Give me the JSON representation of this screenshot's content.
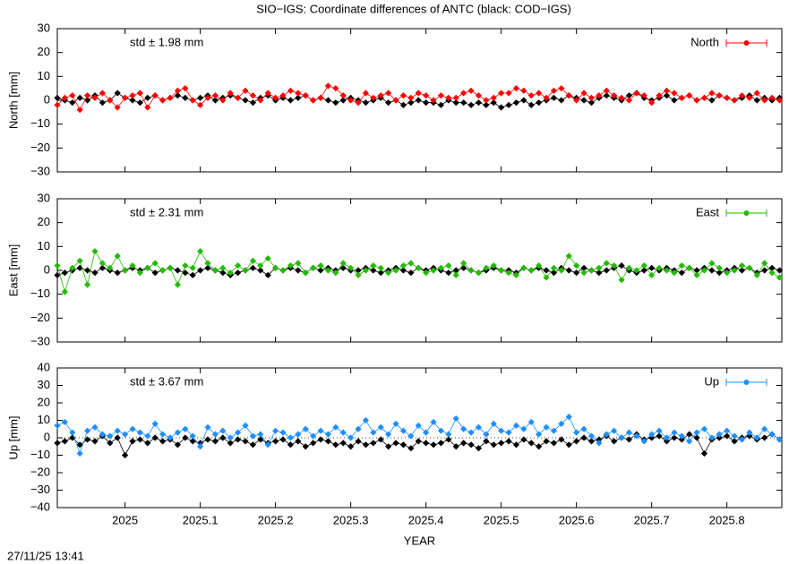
{
  "title": "SIO−IGS: Coordinate differences of ANTC (black: COD−IGS)",
  "footer": "27/11/25 13:41",
  "chart_data": [
    {
      "type": "line",
      "ylabel": "North [mm]",
      "annotation": "std ± 1.98 mm",
      "legend": "top-right",
      "zeroline": false,
      "xlim": [
        2024.91,
        2025.873
      ],
      "xticks": [
        2025,
        2025.1,
        2025.2,
        2025.3,
        2025.4,
        2025.5,
        2025.6,
        2025.7,
        2025.8
      ],
      "ylim": [
        -30,
        30
      ],
      "yticks": [
        {
          "value": -30,
          "label": "−30"
        },
        {
          "value": -20,
          "label": "−20"
        },
        {
          "value": -10,
          "label": "−10"
        },
        0,
        10,
        20,
        30
      ],
      "x": [
        2024.91,
        2024.92,
        2024.93,
        2024.94,
        2024.95,
        2024.96,
        2024.97,
        2024.98,
        2024.99,
        2025,
        2025.01,
        2025.02,
        2025.03,
        2025.04,
        2025.05,
        2025.06,
        2025.07,
        2025.08,
        2025.09,
        2025.1,
        2025.11,
        2025.12,
        2025.13,
        2025.14,
        2025.15,
        2025.16,
        2025.17,
        2025.18,
        2025.19,
        2025.2,
        2025.21,
        2025.22,
        2025.23,
        2025.24,
        2025.25,
        2025.26,
        2025.27,
        2025.28,
        2025.29,
        2025.3,
        2025.31,
        2025.32,
        2025.33,
        2025.34,
        2025.35,
        2025.36,
        2025.37,
        2025.38,
        2025.39,
        2025.4,
        2025.41,
        2025.42,
        2025.43,
        2025.44,
        2025.45,
        2025.46,
        2025.47,
        2025.48,
        2025.49,
        2025.5,
        2025.51,
        2025.52,
        2025.53,
        2025.54,
        2025.55,
        2025.56,
        2025.57,
        2025.58,
        2025.59,
        2025.6,
        2025.61,
        2025.62,
        2025.63,
        2025.64,
        2025.65,
        2025.66,
        2025.67,
        2025.68,
        2025.69,
        2025.7,
        2025.71,
        2025.72,
        2025.73,
        2025.74,
        2025.75,
        2025.76,
        2025.77,
        2025.78,
        2025.79,
        2025.8,
        2025.81,
        2025.82,
        2025.83,
        2025.84,
        2025.85,
        2025.86,
        2025.87
      ],
      "series": [
        {
          "color": "#000000",
          "values": [
            1,
            0,
            -1,
            1,
            0,
            2,
            -1,
            0,
            3,
            1,
            0,
            -1,
            1,
            2,
            0,
            1,
            2,
            1,
            0,
            1,
            2,
            0,
            1,
            2,
            1,
            0,
            -1,
            1,
            2,
            0,
            1,
            0,
            1,
            2,
            0,
            1,
            0,
            -1,
            0,
            1,
            0,
            -1,
            0,
            1,
            -1,
            0,
            -2,
            -1,
            0,
            -1,
            -1,
            -2,
            0,
            -1,
            -1,
            -2,
            -1,
            -2,
            -1,
            -3,
            -2,
            -1,
            0,
            -2,
            -1,
            0,
            1,
            0,
            2,
            1,
            0,
            -1,
            1,
            2,
            1,
            0,
            2,
            3,
            1,
            0,
            1,
            2,
            0,
            1,
            2,
            0,
            1,
            0,
            2,
            1,
            0,
            1,
            2,
            0,
            1,
            0,
            1
          ]
        },
        {
          "name": "North",
          "color": "#ff0000",
          "values": [
            -2,
            1,
            2,
            -4,
            2,
            1,
            3,
            0,
            -3,
            1,
            2,
            3,
            -3,
            2,
            0,
            1,
            4,
            5,
            0,
            -2,
            1,
            2,
            0,
            3,
            1,
            4,
            2,
            0,
            3,
            1,
            2,
            4,
            3,
            2,
            0,
            1,
            6,
            5,
            2,
            0,
            -1,
            3,
            1,
            2,
            3,
            0,
            2,
            1,
            3,
            2,
            0,
            2,
            1,
            1,
            3,
            4,
            2,
            0,
            1,
            3,
            3,
            5,
            4,
            2,
            3,
            1,
            4,
            5,
            2,
            0,
            3,
            1,
            2,
            4,
            2,
            1,
            0,
            3,
            2,
            -1,
            2,
            4,
            3,
            1,
            2,
            0,
            1,
            3,
            2,
            1,
            0,
            2,
            1,
            3,
            0,
            1,
            0
          ]
        }
      ]
    },
    {
      "type": "line",
      "ylabel": "East [mm]",
      "annotation": "std ± 2.31 mm",
      "legend": "top-right",
      "zeroline": false,
      "xlim": [
        2024.91,
        2025.873
      ],
      "xticks": [
        2025,
        2025.1,
        2025.2,
        2025.3,
        2025.4,
        2025.5,
        2025.6,
        2025.7,
        2025.8
      ],
      "ylim": [
        -30,
        30
      ],
      "yticks": [
        {
          "value": -30,
          "label": "−30"
        },
        {
          "value": -20,
          "label": "−20"
        },
        {
          "value": -10,
          "label": "−10"
        },
        0,
        10,
        20,
        30
      ],
      "x": [
        2024.91,
        2024.92,
        2024.93,
        2024.94,
        2024.95,
        2024.96,
        2024.97,
        2024.98,
        2024.99,
        2025,
        2025.01,
        2025.02,
        2025.03,
        2025.04,
        2025.05,
        2025.06,
        2025.07,
        2025.08,
        2025.09,
        2025.1,
        2025.11,
        2025.12,
        2025.13,
        2025.14,
        2025.15,
        2025.16,
        2025.17,
        2025.18,
        2025.19,
        2025.2,
        2025.21,
        2025.22,
        2025.23,
        2025.24,
        2025.25,
        2025.26,
        2025.27,
        2025.28,
        2025.29,
        2025.3,
        2025.31,
        2025.32,
        2025.33,
        2025.34,
        2025.35,
        2025.36,
        2025.37,
        2025.38,
        2025.39,
        2025.4,
        2025.41,
        2025.42,
        2025.43,
        2025.44,
        2025.45,
        2025.46,
        2025.47,
        2025.48,
        2025.49,
        2025.5,
        2025.51,
        2025.52,
        2025.53,
        2025.54,
        2025.55,
        2025.56,
        2025.57,
        2025.58,
        2025.59,
        2025.6,
        2025.61,
        2025.62,
        2025.63,
        2025.64,
        2025.65,
        2025.66,
        2025.67,
        2025.68,
        2025.69,
        2025.7,
        2025.71,
        2025.72,
        2025.73,
        2025.74,
        2025.75,
        2025.76,
        2025.77,
        2025.78,
        2025.79,
        2025.8,
        2025.81,
        2025.82,
        2025.83,
        2025.84,
        2025.85,
        2025.86,
        2025.87
      ],
      "series": [
        {
          "color": "#000000",
          "values": [
            -2,
            -1,
            0,
            1,
            0,
            -1,
            1,
            0,
            -1,
            0,
            1,
            0,
            1,
            -1,
            0,
            1,
            0,
            -1,
            -2,
            0,
            1,
            0,
            -1,
            -2,
            -1,
            0,
            1,
            0,
            -2,
            1,
            0,
            1,
            0,
            -1,
            1,
            0,
            1,
            0,
            1,
            0,
            0,
            1,
            0,
            -1,
            0,
            1,
            0,
            -1,
            1,
            0,
            1,
            0,
            -1,
            0,
            1,
            0,
            -1,
            0,
            1,
            0,
            0,
            -1,
            1,
            0,
            1,
            0,
            -1,
            1,
            0,
            -1,
            1,
            0,
            -1,
            0,
            1,
            2,
            0,
            -1,
            0,
            1,
            0,
            1,
            0,
            -1,
            1,
            0,
            1,
            0,
            -1,
            0,
            1,
            0,
            1,
            -1,
            0,
            1,
            0
          ]
        },
        {
          "name": "East",
          "color": "#22bb00",
          "values": [
            2,
            -9,
            1,
            4,
            -6,
            8,
            3,
            1,
            6,
            0,
            2,
            -1,
            1,
            3,
            0,
            1,
            -6,
            2,
            1,
            8,
            3,
            0,
            1,
            -1,
            2,
            0,
            4,
            2,
            5,
            1,
            0,
            2,
            3,
            -1,
            1,
            2,
            0,
            -1,
            3,
            1,
            -2,
            0,
            2,
            1,
            -1,
            0,
            2,
            3,
            1,
            -1,
            0,
            1,
            2,
            -2,
            3,
            0,
            -1,
            1,
            2,
            0,
            -1,
            -2,
            1,
            0,
            2,
            -3,
            1,
            0,
            6,
            2,
            -1,
            0,
            1,
            3,
            2,
            -4,
            1,
            0,
            2,
            -2,
            1,
            0,
            -1,
            2,
            1,
            -2,
            0,
            3,
            1,
            -1,
            0,
            2,
            1,
            -2,
            3,
            -1,
            -3
          ]
        }
      ]
    },
    {
      "type": "line",
      "ylabel": "Up [mm]",
      "annotation": "std ± 3.67 mm",
      "legend": "top-right",
      "zeroline": true,
      "xlabel": "YEAR",
      "xlim": [
        2024.91,
        2025.873
      ],
      "xticks": [
        2025,
        2025.1,
        2025.2,
        2025.3,
        2025.4,
        2025.5,
        2025.6,
        2025.7,
        2025.8
      ],
      "ylim": [
        -40,
        40
      ],
      "yticks": [
        {
          "value": -40,
          "label": "−40"
        },
        {
          "value": -30,
          "label": "−30"
        },
        {
          "value": -20,
          "label": "−20"
        },
        {
          "value": -10,
          "label": "−10"
        },
        0,
        10,
        20,
        30,
        40
      ],
      "x": [
        2024.91,
        2024.92,
        2024.93,
        2024.94,
        2024.95,
        2024.96,
        2024.97,
        2024.98,
        2024.99,
        2025,
        2025.01,
        2025.02,
        2025.03,
        2025.04,
        2025.05,
        2025.06,
        2025.07,
        2025.08,
        2025.09,
        2025.1,
        2025.11,
        2025.12,
        2025.13,
        2025.14,
        2025.15,
        2025.16,
        2025.17,
        2025.18,
        2025.19,
        2025.2,
        2025.21,
        2025.22,
        2025.23,
        2025.24,
        2025.25,
        2025.26,
        2025.27,
        2025.28,
        2025.29,
        2025.3,
        2025.31,
        2025.32,
        2025.33,
        2025.34,
        2025.35,
        2025.36,
        2025.37,
        2025.38,
        2025.39,
        2025.4,
        2025.41,
        2025.42,
        2025.43,
        2025.44,
        2025.45,
        2025.46,
        2025.47,
        2025.48,
        2025.49,
        2025.5,
        2025.51,
        2025.52,
        2025.53,
        2025.54,
        2025.55,
        2025.56,
        2025.57,
        2025.58,
        2025.59,
        2025.6,
        2025.61,
        2025.62,
        2025.63,
        2025.64,
        2025.65,
        2025.66,
        2025.67,
        2025.68,
        2025.69,
        2025.7,
        2025.71,
        2025.72,
        2025.73,
        2025.74,
        2025.75,
        2025.76,
        2025.77,
        2025.78,
        2025.79,
        2025.8,
        2025.81,
        2025.82,
        2025.83,
        2025.84,
        2025.85,
        2025.86,
        2025.87
      ],
      "series": [
        {
          "color": "#000000",
          "values": [
            -3,
            -2,
            0,
            -4,
            -1,
            -2,
            1,
            -3,
            0,
            -10,
            -2,
            -1,
            -3,
            0,
            -2,
            -1,
            -4,
            0,
            -2,
            -3,
            -1,
            -2,
            0,
            -3,
            -1,
            -2,
            -4,
            -1,
            -3,
            -2,
            -1,
            -4,
            -2,
            -5,
            -3,
            -1,
            -2,
            -4,
            -3,
            -5,
            -2,
            -4,
            -3,
            -1,
            -5,
            -3,
            -4,
            -6,
            -2,
            -3,
            -4,
            -3,
            -1,
            -5,
            -3,
            -4,
            -6,
            -2,
            -4,
            -3,
            -2,
            -4,
            -1,
            -3,
            -5,
            -2,
            -3,
            -1,
            -4,
            -2,
            0,
            -2,
            -1,
            1,
            -2,
            0,
            -1,
            2,
            -1,
            0,
            1,
            -2,
            0,
            -1,
            2,
            0,
            -9,
            -1,
            0,
            1,
            -2,
            0,
            1,
            -1,
            0,
            2,
            -1
          ]
        },
        {
          "name": "Up",
          "color": "#1e8fff",
          "values": [
            7,
            9,
            3,
            -9,
            4,
            6,
            2,
            1,
            4,
            2,
            5,
            3,
            1,
            8,
            2,
            0,
            3,
            5,
            1,
            -5,
            6,
            2,
            4,
            0,
            3,
            7,
            1,
            2,
            -4,
            4,
            3,
            0,
            2,
            5,
            1,
            4,
            2,
            6,
            3,
            0,
            5,
            10,
            3,
            6,
            2,
            8,
            4,
            1,
            7,
            3,
            9,
            4,
            2,
            11,
            5,
            3,
            6,
            2,
            8,
            4,
            3,
            7,
            5,
            9,
            2,
            6,
            4,
            8,
            12,
            3,
            5,
            1,
            -3,
            2,
            4,
            0,
            3,
            1,
            -2,
            2,
            4,
            0,
            3,
            1,
            -2,
            3,
            5,
            0,
            2,
            4,
            1,
            -1,
            3,
            0,
            5,
            2,
            -1
          ]
        }
      ]
    }
  ]
}
